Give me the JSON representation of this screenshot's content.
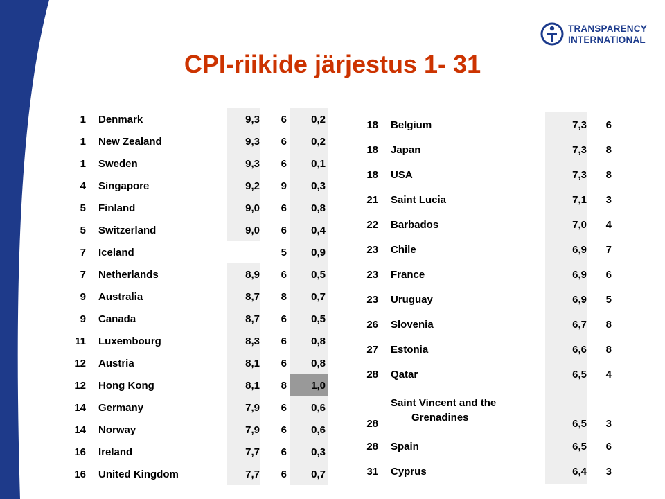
{
  "colors": {
    "title": "#cc3300",
    "background_band": "#1e3a8a",
    "logo": "#1b3a8c",
    "cell_shade": "#eeeeee",
    "cell_dark": "#999999"
  },
  "logo": {
    "line1": "TRANSPARENCY",
    "line2": "INTERNATIONAL",
    "icon": "globe-person-icon"
  },
  "title": "CPI-riikide järjestus 1- 31",
  "left_rows": [
    {
      "rank": "1",
      "country": "Denmark",
      "score": "9,3",
      "surveys": "6",
      "range": "0,2",
      "dark": false
    },
    {
      "rank": "1",
      "country": "New Zealand",
      "score": "9,3",
      "surveys": "6",
      "range": "0,2",
      "dark": false
    },
    {
      "rank": "1",
      "country": "Sweden",
      "score": "9,3",
      "surveys": "6",
      "range": "0,1",
      "dark": false
    },
    {
      "rank": "4",
      "country": "Singapore",
      "score": "9,2",
      "surveys": "9",
      "range": "0,3",
      "dark": false
    },
    {
      "rank": "5",
      "country": "Finland",
      "score": "9,0",
      "surveys": "6",
      "range": "0,8",
      "dark": false
    },
    {
      "rank": "5",
      "country": "Switzerland",
      "score": "9,0",
      "surveys": "6",
      "range": "0,4",
      "dark": false
    },
    {
      "rank": "7",
      "country": "Iceland",
      "score": "",
      "surveys": "5",
      "range": "0,9",
      "dark": false
    },
    {
      "rank": "7",
      "country": "Netherlands",
      "score": "8,9",
      "surveys": "6",
      "range": "0,5",
      "dark": false
    },
    {
      "rank": "9",
      "country": "Australia",
      "score": "8,7",
      "surveys": "8",
      "range": "0,7",
      "dark": false
    },
    {
      "rank": "9",
      "country": "Canada",
      "score": "8,7",
      "surveys": "6",
      "range": "0,5",
      "dark": false
    },
    {
      "rank": "11",
      "country": "Luxembourg",
      "score": "8,3",
      "surveys": "6",
      "range": "0,8",
      "dark": false
    },
    {
      "rank": "12",
      "country": "Austria",
      "score": "8,1",
      "surveys": "6",
      "range": "0,8",
      "dark": false
    },
    {
      "rank": "12",
      "country": "Hong Kong",
      "score": "8,1",
      "surveys": "8",
      "range": "1,0",
      "dark": true
    },
    {
      "rank": "14",
      "country": "Germany",
      "score": "7,9",
      "surveys": "6",
      "range": "0,6",
      "dark": false
    },
    {
      "rank": "14",
      "country": "Norway",
      "score": "7,9",
      "surveys": "6",
      "range": "0,6",
      "dark": false
    },
    {
      "rank": "16",
      "country": "Ireland",
      "score": "7,7",
      "surveys": "6",
      "range": "0,3",
      "dark": false
    },
    {
      "rank": "16",
      "country": "United Kingdom",
      "score": "7,7",
      "surveys": "6",
      "range": "0,7",
      "dark": false
    }
  ],
  "right_rows": [
    {
      "rank": "18",
      "country": "Belgium",
      "score": "7,3",
      "surveys": "6"
    },
    {
      "rank": "18",
      "country": "Japan",
      "score": "7,3",
      "surveys": "8"
    },
    {
      "rank": "18",
      "country": "USA",
      "score": "7,3",
      "surveys": "8"
    },
    {
      "rank": "21",
      "country": "Saint Lucia",
      "score": "7,1",
      "surveys": "3"
    },
    {
      "rank": "22",
      "country": "Barbados",
      "score": "7,0",
      "surveys": "4"
    },
    {
      "rank": "23",
      "country": "Chile",
      "score": "6,9",
      "surveys": "7"
    },
    {
      "rank": "23",
      "country": "France",
      "score": "6,9",
      "surveys": "6"
    },
    {
      "rank": "23",
      "country": "Uruguay",
      "score": "6,9",
      "surveys": "5"
    },
    {
      "rank": "26",
      "country": "Slovenia",
      "score": "6,7",
      "surveys": "8"
    },
    {
      "rank": "27",
      "country": "Estonia",
      "score": "6,6",
      "surveys": "8"
    },
    {
      "rank": "28",
      "country": "Qatar",
      "score": "6,5",
      "surveys": "4"
    },
    {
      "rank": "28",
      "country": "Saint Vincent and the",
      "country_line2": "Grenadines",
      "score": "6,5",
      "surveys": "3"
    },
    {
      "rank": "28",
      "country": "Spain",
      "score": "6,5",
      "surveys": "6"
    },
    {
      "rank": "31",
      "country": "Cyprus",
      "score": "6,4",
      "surveys": "3"
    }
  ]
}
